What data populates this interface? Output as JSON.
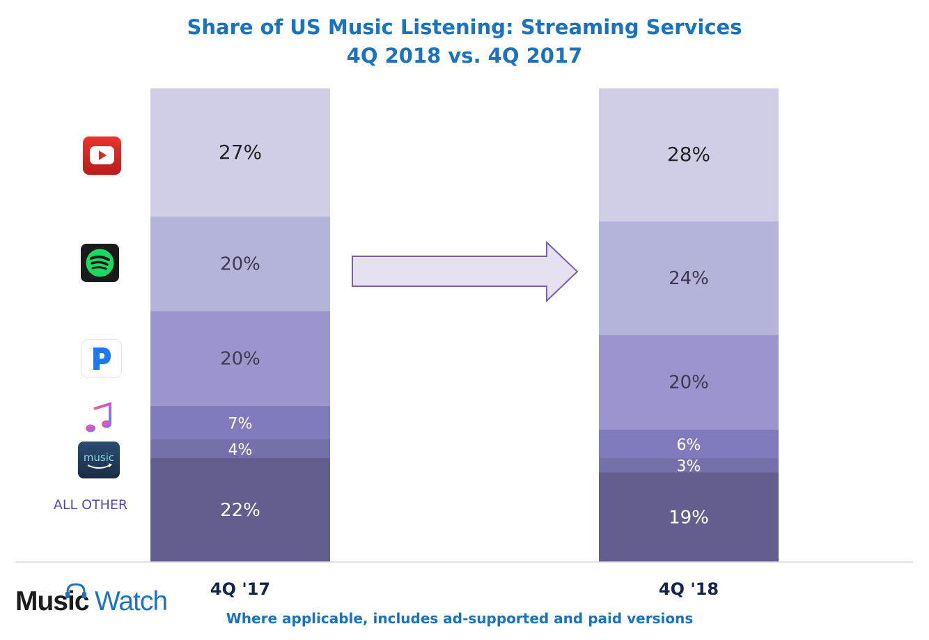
{
  "title_line1": "Share of US Music Listening: Streaming Services",
  "title_line2": "4Q 2018 vs. 4Q 2017",
  "footnote": "Where applicable, includes ad-supported and paid versions",
  "logo": {
    "part1": "Music",
    "part2": "Watch"
  },
  "legend": {
    "icons": [
      "youtube-icon",
      "spotify-icon",
      "pandora-icon",
      "apple-music-icon",
      "amazon-music-icon"
    ],
    "all_other_label": "ALL OTHER",
    "amazon_icon_text": "music"
  },
  "colors": {
    "title": "#1a73c0",
    "segments": [
      "#d0cee6",
      "#b4b3da",
      "#9a96cd",
      "#7f7bbd",
      "#7370aa",
      "#625e90"
    ],
    "label_dark": "#222222",
    "label_light": "#ffffff"
  },
  "chart_data": {
    "type": "bar",
    "stacked": true,
    "categories": [
      "4Q '17",
      "4Q '18"
    ],
    "series": [
      {
        "name": "All Other",
        "values": [
          22,
          19
        ],
        "labels": [
          "22%",
          "19%"
        ]
      },
      {
        "name": "Amazon Music",
        "values": [
          4,
          3
        ],
        "labels": [
          "4%",
          "3%"
        ]
      },
      {
        "name": "Apple Music",
        "values": [
          7,
          6
        ],
        "labels": [
          "7%",
          "6%"
        ]
      },
      {
        "name": "Pandora",
        "values": [
          20,
          20
        ],
        "labels": [
          "20%",
          "20%"
        ]
      },
      {
        "name": "Spotify",
        "values": [
          20,
          24
        ],
        "labels": [
          "20%",
          "24%"
        ]
      },
      {
        "name": "YouTube",
        "values": [
          27,
          28
        ],
        "labels": [
          "27%",
          "28%"
        ]
      }
    ],
    "title": "Share of US Music Listening: Streaming Services",
    "subtitle": "4Q 2018 vs. 4Q 2017",
    "xlabel": "",
    "ylabel": "",
    "ylim": [
      0,
      100
    ]
  }
}
